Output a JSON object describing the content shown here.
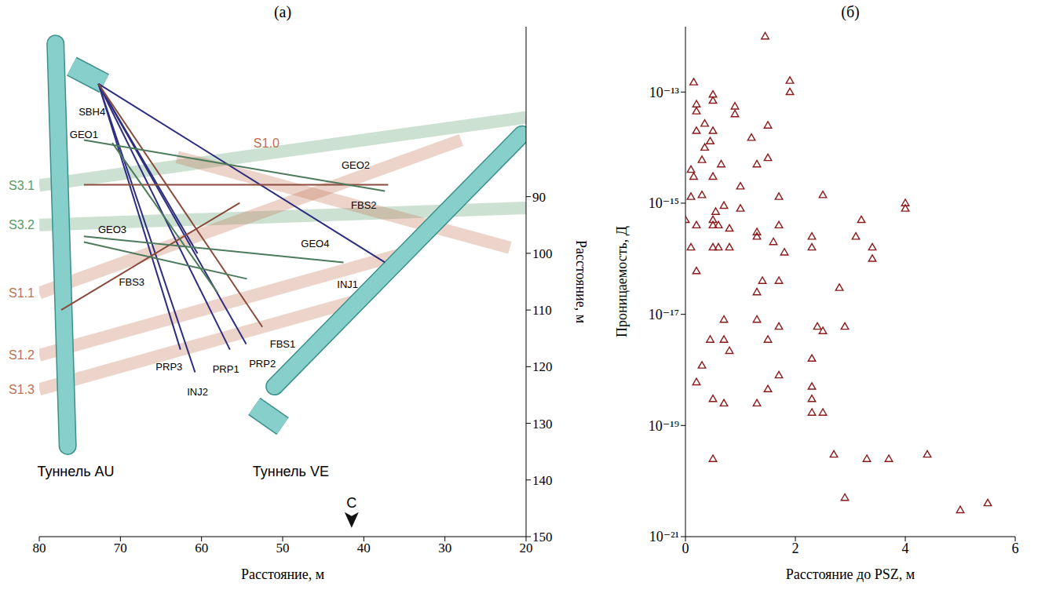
{
  "chart_data": [
    {
      "type": "line",
      "title": "(а)",
      "xlabel": "Расстояние, м",
      "ylabel": "Расстояние, м",
      "xlim": [
        80,
        20
      ],
      "xticks": [
        80,
        70,
        60,
        50,
        40,
        30,
        20
      ],
      "ylim": [
        150,
        60
      ],
      "yticks": [
        90,
        100,
        110,
        120,
        130,
        140,
        150
      ],
      "series": [
        {
          "name": "S3.1",
          "type": "zone",
          "color": "#5a9a6a",
          "x": [
            80,
            20
          ],
          "values": [
            88,
            76
          ]
        },
        {
          "name": "S3.2",
          "type": "zone",
          "color": "#5a9a6a",
          "x": [
            80,
            20
          ],
          "values": [
            95,
            92
          ]
        },
        {
          "name": "S1.0",
          "type": "zone",
          "color": "#c0704f",
          "x": [
            63,
            22
          ],
          "values": [
            83,
            99
          ],
          "label": [
            52,
            80.5
          ]
        },
        {
          "name": "S1.1",
          "type": "zone",
          "color": "#c0704f",
          "x": [
            80,
            28
          ],
          "values": [
            107,
            80
          ]
        },
        {
          "name": "S1.2",
          "type": "zone",
          "color": "#c0704f",
          "x": [
            80,
            35
          ],
          "values": [
            118,
            100
          ]
        },
        {
          "name": "S1.3",
          "type": "zone",
          "color": "#c0704f",
          "x": [
            80,
            40
          ],
          "values": [
            124,
            108
          ]
        },
        {
          "name": "Туннель AU",
          "type": "tunnel",
          "color": "#86cfca",
          "x": [
            78,
            76.5
          ],
          "values": [
            63,
            134
          ],
          "label": [
            75.5,
            138.5
          ]
        },
        {
          "type": "chamber",
          "color": "#86cfca",
          "x": [
            76,
            72
          ],
          "values": [
            67,
            70
          ]
        },
        {
          "name": "Туннель VE",
          "type": "tunnel",
          "color": "#86cfca",
          "x": [
            20.5,
            51
          ],
          "values": [
            79,
            123.5
          ],
          "label": [
            49,
            138.5
          ]
        },
        {
          "type": "chamber",
          "color": "#86cfca",
          "x": [
            53.5,
            50
          ],
          "values": [
            127,
            130.5
          ]
        },
        {
          "name": "INJ1",
          "type": "borehole",
          "color": "#2d2d80",
          "x": [
            72.7,
            37.4
          ],
          "values": [
            70.1,
            101.6
          ],
          "label": [
            42,
            105.5
          ]
        },
        {
          "name": "INJ2",
          "type": "borehole",
          "color": "#2d2d80",
          "x": [
            72.7,
            60.8
          ],
          "values": [
            70.1,
            121
          ],
          "label": [
            60.5,
            124.5
          ]
        },
        {
          "name": "PRP1",
          "type": "borehole",
          "color": "#2d2d80",
          "x": [
            72.7,
            56.5
          ],
          "values": [
            70.1,
            117
          ],
          "label": [
            57,
            120.5
          ]
        },
        {
          "name": "PRP2",
          "type": "borehole",
          "color": "#2d2d80",
          "x": [
            72.7,
            54.5
          ],
          "values": [
            70.1,
            116
          ],
          "label": [
            52.5,
            119.5
          ]
        },
        {
          "name": "PRP3",
          "type": "borehole",
          "color": "#2d2d80",
          "x": [
            72.7,
            62.6
          ],
          "values": [
            70.1,
            117
          ],
          "label": [
            64,
            120
          ]
        },
        {
          "name": "SBH4",
          "type": "borehole",
          "color": "#2d2d80",
          "x": [
            72.7,
            60.5
          ],
          "values": [
            70.1,
            100
          ],
          "label": [
            73.5,
            75
          ]
        },
        {
          "name": "FBS1",
          "type": "borehole",
          "color": "#8a4a3c",
          "x": [
            72.7,
            52.5
          ],
          "values": [
            70.1,
            113
          ],
          "label": [
            50,
            116
          ]
        },
        {
          "name": "FBS2",
          "type": "borehole",
          "color": "#8a4a3c",
          "x": [
            74.5,
            37
          ],
          "values": [
            87.9,
            87.9
          ],
          "label": [
            40,
            91.5
          ]
        },
        {
          "name": "FBS3",
          "type": "borehole",
          "color": "#8a4a3c",
          "x": [
            77.3,
            55.3
          ],
          "values": [
            110,
            91.1
          ],
          "label": [
            68.6,
            105.1
          ]
        },
        {
          "name": "GEO1",
          "type": "borehole",
          "color": "#4d7a5c",
          "x": [
            71,
            58
          ],
          "values": [
            80.5,
            107
          ],
          "label": [
            74.5,
            79
          ]
        },
        {
          "name": "GEO2",
          "type": "borehole",
          "color": "#4d7a5c",
          "x": [
            74.5,
            37.4
          ],
          "values": [
            80,
            89
          ],
          "label": [
            41,
            84.5
          ]
        },
        {
          "name": "GEO3",
          "type": "borehole",
          "color": "#4d7a5c",
          "x": [
            74.5,
            54.4
          ],
          "values": [
            98,
            104.5
          ],
          "label": [
            71,
            95.8
          ]
        },
        {
          "name": "GEO4",
          "type": "borehole",
          "color": "#4d7a5c",
          "x": [
            74.5,
            42.5
          ],
          "values": [
            97,
            101.6
          ],
          "label": [
            46,
            98.3
          ]
        }
      ],
      "annotations": [
        {
          "text": "С",
          "x": 41.5,
          "y": 144,
          "marker": "arrow"
        }
      ]
    },
    {
      "type": "scatter",
      "title": "(б)",
      "xlabel": "Расстояние до PSZ, м",
      "ylabel": "Проницаемость, Д",
      "log": "y",
      "marker": "triangle",
      "color": "#8b1a1a",
      "xlim": [
        0,
        6
      ],
      "xticks": [
        0,
        2,
        4,
        6
      ],
      "ylim": [
        1e-21,
        1.5e-12
      ],
      "yticks": [
        {
          "value": 1e-21,
          "label": "10⁻²¹"
        },
        {
          "value": 1e-19,
          "label": "10⁻¹⁹"
        },
        {
          "value": 1e-17,
          "label": "10⁻¹⁷"
        },
        {
          "value": 1e-15,
          "label": "10⁻¹⁵"
        },
        {
          "value": 1e-13,
          "label": "10⁻¹³"
        }
      ],
      "x": [
        1.45,
        0.15,
        1.9,
        1.9,
        0.2,
        0.2,
        0.5,
        0.5,
        0.9,
        0.9,
        0.2,
        0.35,
        0.5,
        1.5,
        1.2,
        0.35,
        0.45,
        0.3,
        1.5,
        1.3,
        0.1,
        0.15,
        0.5,
        0.65,
        0.1,
        0.3,
        1.0,
        1.7,
        2.5,
        0.55,
        0.7,
        1.0,
        0,
        0.2,
        0.5,
        0.5,
        0.6,
        0.8,
        1.3,
        1.3,
        1.6,
        1.7,
        1.8,
        2.3,
        2.3,
        3.1,
        3.2,
        3.4,
        3.4,
        4.0,
        4.0,
        0.1,
        0.5,
        0.6,
        0.8,
        0.2,
        1.4,
        1.7,
        2.8,
        1.3,
        0.7,
        1.3,
        1.7,
        2.4,
        2.5,
        2.9,
        0.45,
        0.7,
        1.5,
        0.8,
        2.3,
        0.3,
        1.7,
        0.2,
        2.3,
        1.5,
        0.5,
        2.3,
        0.7,
        1.3,
        2.3,
        2.5,
        0.5,
        2.7,
        3.3,
        3.7,
        4.4,
        2.9,
        5.5,
        5.0
      ],
      "values": [
        1e-12,
        1.5e-13,
        1.6e-13,
        1e-13,
        6e-14,
        4.5e-14,
        9e-14,
        7e-14,
        5.5e-14,
        4e-14,
        2e-14,
        2.7e-14,
        2e-14,
        2.5e-14,
        1.5e-14,
        1e-14,
        1.3e-14,
        6e-15,
        6.5e-15,
        5e-15,
        4e-15,
        3e-15,
        3e-15,
        5e-15,
        1.3e-15,
        1.4e-15,
        2e-15,
        1.3e-15,
        1.4e-15,
        7e-16,
        9e-16,
        8e-16,
        5e-16,
        4e-16,
        5e-16,
        4e-16,
        4e-16,
        3.5e-16,
        3e-16,
        2.5e-16,
        2e-16,
        4e-16,
        1.3e-16,
        2.5e-16,
        1.6e-16,
        2.5e-16,
        5e-16,
        1.6e-16,
        1e-16,
        1e-15,
        8e-16,
        1.6e-16,
        1.6e-16,
        1.6e-16,
        1.6e-16,
        6e-17,
        4e-17,
        4e-17,
        3e-17,
        2.5e-17,
        8e-18,
        8e-18,
        6e-18,
        6e-18,
        5e-18,
        6e-18,
        3.5e-18,
        3.5e-18,
        3.5e-18,
        2.2e-18,
        1.6e-18,
        1.2e-18,
        8e-19,
        6e-19,
        5e-19,
        4.5e-19,
        3e-19,
        3e-19,
        2.5e-19,
        2.5e-19,
        1.7e-19,
        1.7e-19,
        2.5e-20,
        3e-20,
        2.5e-20,
        2.5e-20,
        3e-20,
        5e-21,
        4e-21,
        3e-21
      ]
    }
  ]
}
